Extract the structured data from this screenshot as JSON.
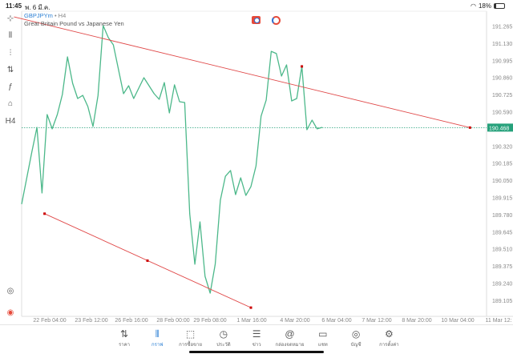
{
  "status_bar": {
    "time": "11:45",
    "date": "พ. 6 มี.ค.",
    "battery": "18%",
    "battery_level": 0.18
  },
  "symbol": {
    "name": "GBPJPYm",
    "separator": "•",
    "timeframe": "H4",
    "description": "Great Britain Pound vs Japanese Yen"
  },
  "toolbar": {
    "items": [
      {
        "icon": "crosshair-icon",
        "glyph": "⊹"
      },
      {
        "icon": "candlestick-icon",
        "glyph": "⫴"
      },
      {
        "icon": "indicators-icon",
        "glyph": "⫶"
      },
      {
        "icon": "settings-sliders-icon",
        "glyph": "⇅"
      },
      {
        "icon": "function-icon",
        "glyph": "ƒ"
      },
      {
        "icon": "shapes-icon",
        "glyph": "⌂"
      },
      {
        "icon": "timeframe-icon",
        "glyph": "H4"
      }
    ],
    "bottom": [
      {
        "icon": "chart-zoom-icon",
        "glyph": "◎"
      },
      {
        "icon": "app-logo-icon",
        "glyph": "◉"
      }
    ]
  },
  "colors": {
    "line": "#4cb88a",
    "trend": "#e04848",
    "current_price": "#26a17b",
    "active": "#2a7fd4"
  },
  "chart_data": {
    "type": "line",
    "series": [
      {
        "values": [
          189.865,
          null,
          190.275,
          190.47,
          189.953,
          190.571,
          190.458,
          190.571,
          190.729,
          191.025,
          190.817,
          190.697,
          190.722,
          190.634,
          190.477,
          190.722,
          191.271,
          191.177,
          191.12,
          null,
          190.735,
          190.798,
          190.697,
          null,
          190.861,
          null,
          190.735,
          190.691,
          190.823,
          190.584,
          190.805,
          190.672,
          190.666,
          189.789,
          189.392,
          189.726,
          189.297,
          189.164,
          189.392,
          189.896,
          190.085,
          190.13,
          189.94,
          190.073,
          189.934,
          190.003,
          190.167,
          190.558,
          190.685,
          191.069,
          191.051,
          190.874,
          190.962,
          190.678,
          190.697,
          190.95,
          190.451,
          190.527,
          190.458,
          190.47
        ]
      }
    ],
    "current_price": "190.468",
    "y_ticks": [
      "191.265",
      "191.130",
      "190.995",
      "190.860",
      "190.725",
      "190.590",
      "190.320",
      "190.185",
      "190.050",
      "189.915",
      "189.780",
      "189.645",
      "189.510",
      "189.375",
      "189.240",
      "189.105"
    ],
    "ylim": [
      189.05,
      191.32
    ],
    "x_ticks": [
      "22 Feb 04:00",
      "23 Feb 12:00",
      "26 Feb 16:00",
      "28 Feb 00:00",
      "29 Feb 08:00",
      "1 Mar 16:00",
      "4 Mar 20:00",
      "6 Mar 04:00",
      "7 Mar 12:00",
      "8 Mar 20:00",
      "10 Mar 04:00",
      "11 Mar 12:"
    ],
    "trendlines": [
      {
        "from": [
          -1.5,
          191.34
        ],
        "to": [
          88,
          190.468
        ],
        "anchor": [
          55,
          190.95
        ]
      },
      {
        "from": [
          4.5,
          189.79
        ],
        "to": [
          45,
          189.05
        ],
        "anchor": [
          24.7,
          189.42
        ]
      }
    ]
  },
  "nav": [
    {
      "label": "ราคา",
      "icon": "quotes-icon",
      "glyph": "⇅"
    },
    {
      "label": "กราฟ",
      "icon": "chart-icon",
      "glyph": "⫴",
      "active": true
    },
    {
      "label": "การซื้อขาย",
      "icon": "trade-icon",
      "glyph": "⬚"
    },
    {
      "label": "ประวัติ",
      "icon": "history-icon",
      "glyph": "◷"
    },
    {
      "label": "ข่าว",
      "icon": "news-icon",
      "glyph": "☰"
    },
    {
      "label": "กล่องจดหมาย",
      "icon": "mailbox-icon",
      "glyph": "@"
    },
    {
      "label": "แชท",
      "icon": "chat-icon",
      "glyph": "▭"
    },
    {
      "label": "บัญชี",
      "icon": "account-icon",
      "glyph": "◎"
    },
    {
      "label": "การตั้งค่า",
      "icon": "settings-icon",
      "glyph": "⚙"
    }
  ]
}
